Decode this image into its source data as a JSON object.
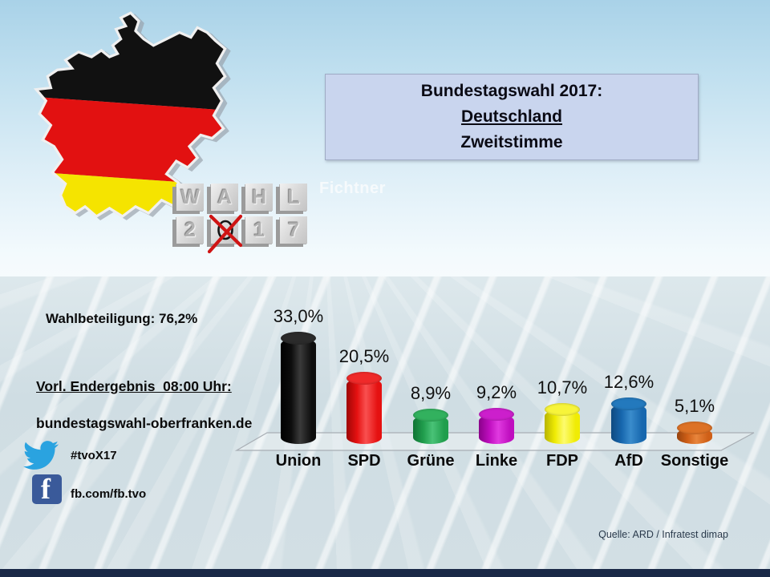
{
  "header": {
    "title_line1": "Bundestagswahl 2017:",
    "title_line2": "Deutschland",
    "title_line3": "Zweitstimme"
  },
  "watermark": "Fichtner",
  "wahl_blocks": {
    "top": [
      "W",
      "A",
      "H",
      "L"
    ],
    "bottom": [
      "2",
      "0",
      "1",
      "7"
    ],
    "crossed_letter": "0"
  },
  "left_panel": {
    "turnout": "Wahlbeteiligung: 76,2%",
    "result_heading": "Vorl. Endergebnis  08:00 Uhr:",
    "website": "bundestagswahl-oberfranken.de",
    "twitter": "#tvoX17",
    "facebook": "fb.com/fb.tvo"
  },
  "source": "Quelle: ARD / Infratest dimap",
  "flag_colors": {
    "black": "#111111",
    "red": "#e21111",
    "gold": "#f5e400"
  },
  "chart_data": {
    "type": "bar",
    "style": "3d-cylinder",
    "title": "Bundestagswahl 2017: Deutschland Zweitstimme",
    "categories": [
      "Union",
      "SPD",
      "Grüne",
      "Linke",
      "FDP",
      "AfD",
      "Sonstige"
    ],
    "values": [
      33.0,
      20.5,
      8.9,
      9.2,
      10.7,
      12.6,
      5.1
    ],
    "labels": [
      "33,0%",
      "20,5%",
      "8,9%",
      "9,2%",
      "10,7%",
      "12,6%",
      "5,1%"
    ],
    "ylim": [
      0,
      35
    ],
    "grid": false,
    "legend": "none",
    "series_colors": [
      {
        "main": "#0d0d0d",
        "dark": "#000000",
        "light": "#3a3a3a",
        "cap": "#2b2b2b"
      },
      {
        "main": "#e51111",
        "dark": "#9e0606",
        "light": "#f95050",
        "cap": "#ef2a2a"
      },
      {
        "main": "#219e4d",
        "dark": "#0f7434",
        "light": "#49c277",
        "cap": "#32b15e"
      },
      {
        "main": "#bf0ebf",
        "dark": "#8a008a",
        "light": "#e03ae0",
        "cap": "#cc1fcc"
      },
      {
        "main": "#f0ec04",
        "dark": "#b8b400",
        "light": "#fdfb6e",
        "cap": "#f7f43a"
      },
      {
        "main": "#1767ae",
        "dark": "#0f4a80",
        "light": "#3a8ccc",
        "cap": "#2379bd"
      },
      {
        "main": "#cf5f17",
        "dark": "#96430e",
        "light": "#e8853c",
        "cap": "#dd7226"
      }
    ]
  }
}
